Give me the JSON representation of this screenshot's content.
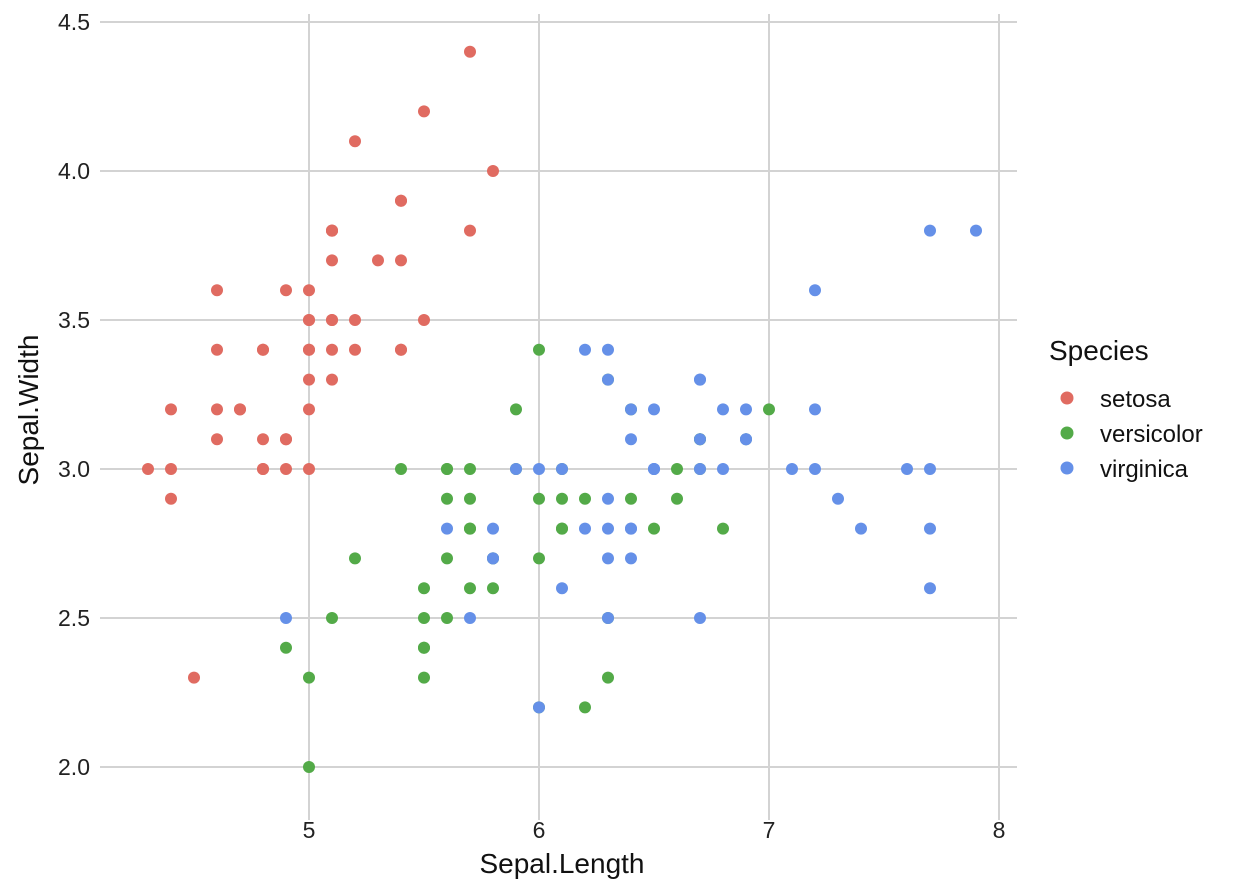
{
  "chart_data": {
    "type": "scatter",
    "xlabel": "Sepal.Length",
    "ylabel": "Sepal.Width",
    "xlim": [
      4.3,
      7.9
    ],
    "ylim": [
      2.0,
      4.5
    ],
    "x_ticks": [
      5,
      6,
      7,
      8
    ],
    "y_ticks": [
      2.0,
      2.5,
      3.0,
      3.5,
      4.0,
      4.5
    ],
    "x_tick_labels": [
      "5",
      "6",
      "7",
      "8"
    ],
    "y_tick_labels": [
      "2.0",
      "2.5",
      "3.0",
      "3.5",
      "4.0",
      "4.5"
    ],
    "grid": true,
    "legend": {
      "title": "Species",
      "position": "right"
    },
    "series": [
      {
        "name": "setosa",
        "color": "#e06b61",
        "points": [
          [
            5.1,
            3.5
          ],
          [
            4.9,
            3.0
          ],
          [
            4.7,
            3.2
          ],
          [
            4.6,
            3.1
          ],
          [
            5.0,
            3.6
          ],
          [
            5.4,
            3.9
          ],
          [
            4.6,
            3.4
          ],
          [
            5.0,
            3.4
          ],
          [
            4.4,
            2.9
          ],
          [
            4.9,
            3.1
          ],
          [
            5.4,
            3.7
          ],
          [
            4.8,
            3.4
          ],
          [
            4.8,
            3.0
          ],
          [
            4.3,
            3.0
          ],
          [
            5.8,
            4.0
          ],
          [
            5.7,
            4.4
          ],
          [
            5.4,
            3.9
          ],
          [
            5.1,
            3.5
          ],
          [
            5.7,
            3.8
          ],
          [
            5.1,
            3.8
          ],
          [
            5.4,
            3.4
          ],
          [
            5.1,
            3.7
          ],
          [
            4.6,
            3.6
          ],
          [
            5.1,
            3.3
          ],
          [
            4.8,
            3.4
          ],
          [
            5.0,
            3.0
          ],
          [
            5.0,
            3.4
          ],
          [
            5.2,
            3.5
          ],
          [
            5.2,
            3.4
          ],
          [
            4.7,
            3.2
          ],
          [
            4.8,
            3.1
          ],
          [
            5.4,
            3.4
          ],
          [
            5.2,
            4.1
          ],
          [
            5.5,
            4.2
          ],
          [
            4.9,
            3.1
          ],
          [
            5.0,
            3.2
          ],
          [
            5.5,
            3.5
          ],
          [
            4.9,
            3.6
          ],
          [
            4.4,
            3.0
          ],
          [
            5.1,
            3.4
          ],
          [
            5.0,
            3.5
          ],
          [
            4.5,
            2.3
          ],
          [
            4.4,
            3.2
          ],
          [
            5.0,
            3.5
          ],
          [
            5.1,
            3.8
          ],
          [
            4.8,
            3.0
          ],
          [
            5.1,
            3.8
          ],
          [
            4.6,
            3.2
          ],
          [
            5.3,
            3.7
          ],
          [
            5.0,
            3.3
          ]
        ]
      },
      {
        "name": "versicolor",
        "color": "#53aa48",
        "points": [
          [
            7.0,
            3.2
          ],
          [
            6.4,
            3.2
          ],
          [
            6.9,
            3.1
          ],
          [
            5.5,
            2.3
          ],
          [
            6.5,
            2.8
          ],
          [
            5.7,
            2.8
          ],
          [
            6.3,
            3.3
          ],
          [
            4.9,
            2.4
          ],
          [
            6.6,
            2.9
          ],
          [
            5.2,
            2.7
          ],
          [
            5.0,
            2.0
          ],
          [
            5.9,
            3.0
          ],
          [
            6.0,
            2.2
          ],
          [
            6.1,
            2.9
          ],
          [
            5.6,
            2.9
          ],
          [
            6.7,
            3.1
          ],
          [
            5.6,
            3.0
          ],
          [
            5.8,
            2.7
          ],
          [
            6.2,
            2.2
          ],
          [
            5.6,
            2.5
          ],
          [
            5.9,
            3.2
          ],
          [
            6.1,
            2.8
          ],
          [
            6.3,
            2.5
          ],
          [
            6.1,
            2.8
          ],
          [
            6.4,
            2.9
          ],
          [
            6.6,
            3.0
          ],
          [
            6.8,
            2.8
          ],
          [
            6.7,
            3.0
          ],
          [
            6.0,
            2.9
          ],
          [
            5.7,
            2.6
          ],
          [
            5.5,
            2.4
          ],
          [
            5.5,
            2.4
          ],
          [
            5.8,
            2.7
          ],
          [
            6.0,
            2.7
          ],
          [
            5.4,
            3.0
          ],
          [
            6.0,
            3.4
          ],
          [
            6.7,
            3.1
          ],
          [
            6.3,
            2.3
          ],
          [
            5.6,
            3.0
          ],
          [
            5.5,
            2.5
          ],
          [
            5.5,
            2.6
          ],
          [
            6.1,
            3.0
          ],
          [
            5.8,
            2.6
          ],
          [
            5.0,
            2.3
          ],
          [
            5.6,
            2.7
          ],
          [
            5.7,
            3.0
          ],
          [
            5.7,
            2.9
          ],
          [
            6.2,
            2.9
          ],
          [
            5.1,
            2.5
          ],
          [
            5.7,
            2.8
          ]
        ]
      },
      {
        "name": "virginica",
        "color": "#6590e8",
        "points": [
          [
            6.3,
            3.3
          ],
          [
            5.8,
            2.7
          ],
          [
            7.1,
            3.0
          ],
          [
            6.3,
            2.9
          ],
          [
            6.5,
            3.0
          ],
          [
            7.6,
            3.0
          ],
          [
            4.9,
            2.5
          ],
          [
            7.3,
            2.9
          ],
          [
            6.7,
            2.5
          ],
          [
            7.2,
            3.6
          ],
          [
            6.5,
            3.2
          ],
          [
            6.4,
            2.7
          ],
          [
            6.8,
            3.0
          ],
          [
            5.7,
            2.5
          ],
          [
            5.8,
            2.8
          ],
          [
            6.4,
            3.2
          ],
          [
            6.5,
            3.0
          ],
          [
            7.7,
            3.8
          ],
          [
            7.7,
            2.6
          ],
          [
            6.0,
            2.2
          ],
          [
            6.9,
            3.2
          ],
          [
            5.6,
            2.8
          ],
          [
            7.7,
            2.8
          ],
          [
            6.3,
            2.7
          ],
          [
            6.7,
            3.3
          ],
          [
            7.2,
            3.2
          ],
          [
            6.2,
            2.8
          ],
          [
            6.1,
            3.0
          ],
          [
            6.4,
            2.8
          ],
          [
            7.2,
            3.0
          ],
          [
            7.4,
            2.8
          ],
          [
            7.9,
            3.8
          ],
          [
            6.4,
            2.8
          ],
          [
            6.3,
            2.8
          ],
          [
            6.1,
            2.6
          ],
          [
            7.7,
            3.0
          ],
          [
            6.3,
            3.4
          ],
          [
            6.4,
            3.1
          ],
          [
            6.0,
            3.0
          ],
          [
            6.9,
            3.1
          ],
          [
            6.7,
            3.1
          ],
          [
            6.9,
            3.1
          ],
          [
            5.8,
            2.7
          ],
          [
            6.8,
            3.2
          ],
          [
            6.7,
            3.3
          ],
          [
            6.7,
            3.0
          ],
          [
            6.3,
            2.5
          ],
          [
            6.5,
            3.0
          ],
          [
            6.2,
            3.4
          ],
          [
            5.9,
            3.0
          ]
        ]
      }
    ]
  }
}
